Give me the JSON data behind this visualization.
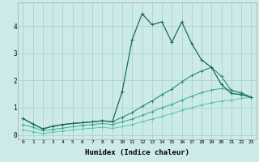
{
  "xlabel": "Humidex (Indice chaleur)",
  "ylabel": "",
  "background_color": "#cceae7",
  "grid_color": "#aad4d0",
  "line_color_dark": "#1a6b5a",
  "line_color_mid1": "#2a8a72",
  "line_color_mid2": "#3aaa8e",
  "line_color_light": "#5ac8b0",
  "x_values": [
    0,
    1,
    2,
    3,
    4,
    5,
    6,
    7,
    8,
    9,
    10,
    11,
    12,
    13,
    14,
    15,
    16,
    17,
    18,
    19,
    20,
    21,
    22,
    23
  ],
  "line1": [
    0.6,
    0.4,
    0.22,
    0.32,
    0.38,
    0.42,
    0.45,
    0.48,
    0.52,
    0.48,
    1.6,
    3.5,
    4.45,
    4.05,
    4.15,
    3.4,
    4.15,
    3.35,
    2.75,
    2.48,
    1.85,
    1.52,
    1.48,
    1.38
  ],
  "line2": [
    0.6,
    0.4,
    0.22,
    0.32,
    0.38,
    0.42,
    0.45,
    0.48,
    0.52,
    0.48,
    0.65,
    0.82,
    1.05,
    1.25,
    1.48,
    1.68,
    1.95,
    2.18,
    2.35,
    2.48,
    2.15,
    1.62,
    1.55,
    1.38
  ],
  "line3": [
    0.38,
    0.28,
    0.15,
    0.2,
    0.25,
    0.3,
    0.35,
    0.38,
    0.42,
    0.38,
    0.48,
    0.58,
    0.72,
    0.85,
    1.0,
    1.12,
    1.28,
    1.42,
    1.55,
    1.65,
    1.7,
    1.65,
    1.52,
    1.38
  ],
  "line4": [
    0.18,
    0.12,
    0.05,
    0.1,
    0.14,
    0.18,
    0.22,
    0.25,
    0.28,
    0.24,
    0.3,
    0.38,
    0.48,
    0.58,
    0.68,
    0.78,
    0.9,
    1.0,
    1.1,
    1.18,
    1.24,
    1.28,
    1.34,
    1.38
  ],
  "ylim": [
    -0.15,
    4.85
  ],
  "xlim": [
    -0.5,
    23.5
  ],
  "yticks": [
    0,
    1,
    2,
    3,
    4
  ],
  "xticks": [
    0,
    1,
    2,
    3,
    4,
    5,
    6,
    7,
    8,
    9,
    10,
    11,
    12,
    13,
    14,
    15,
    16,
    17,
    18,
    19,
    20,
    21,
    22,
    23
  ],
  "figsize": [
    3.2,
    2.0
  ],
  "dpi": 100
}
